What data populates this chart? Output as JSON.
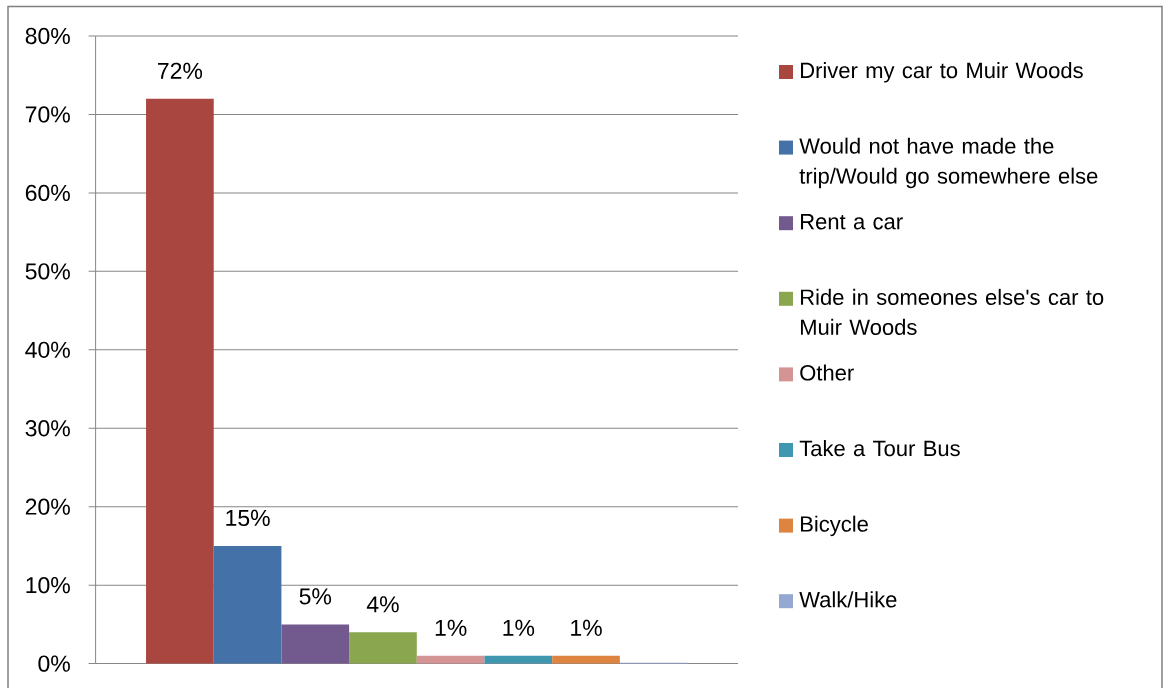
{
  "chart_data": {
    "type": "bar",
    "categories": [
      null
    ],
    "series": [
      {
        "name": "Driver my car to Muir Woods",
        "color": "#a9463f",
        "values": [
          72
        ],
        "value_labels": [
          "72%"
        ]
      },
      {
        "name": "Would not have made the trip/Would go somewhere else",
        "color": "#4472a8",
        "values": [
          15
        ],
        "value_labels": [
          "15%"
        ]
      },
      {
        "name": "Rent a car",
        "color": "#725a8e",
        "values": [
          5
        ],
        "value_labels": [
          "5%"
        ]
      },
      {
        "name": "Ride in someones else's car to Muir Woods",
        "color": "#8aa64e",
        "values": [
          4
        ],
        "value_labels": [
          "4%"
        ]
      },
      {
        "name": "Other",
        "color": "#d49494",
        "values": [
          1
        ],
        "value_labels": [
          "1%"
        ]
      },
      {
        "name": "Take a Tour Bus",
        "color": "#3f98af",
        "values": [
          1
        ],
        "value_labels": [
          "1%"
        ]
      },
      {
        "name": "Bicycle",
        "color": "#dd8540",
        "values": [
          1
        ],
        "value_labels": [
          "1%"
        ]
      },
      {
        "name": "Walk/Hike",
        "color": "#94a8d2",
        "values": [
          0.1
        ],
        "value_labels": [
          null
        ]
      }
    ],
    "ylim": [
      0,
      80
    ],
    "yticks": [
      {
        "value": 0,
        "label": "0%"
      },
      {
        "value": 10,
        "label": "10%"
      },
      {
        "value": 20,
        "label": "20%"
      },
      {
        "value": 30,
        "label": "30%"
      },
      {
        "value": 40,
        "label": "40%"
      },
      {
        "value": 50,
        "label": "50%"
      },
      {
        "value": 60,
        "label": "60%"
      },
      {
        "value": 70,
        "label": "70%"
      },
      {
        "value": 80,
        "label": "80%"
      }
    ],
    "grid": "y",
    "legend": "right"
  }
}
